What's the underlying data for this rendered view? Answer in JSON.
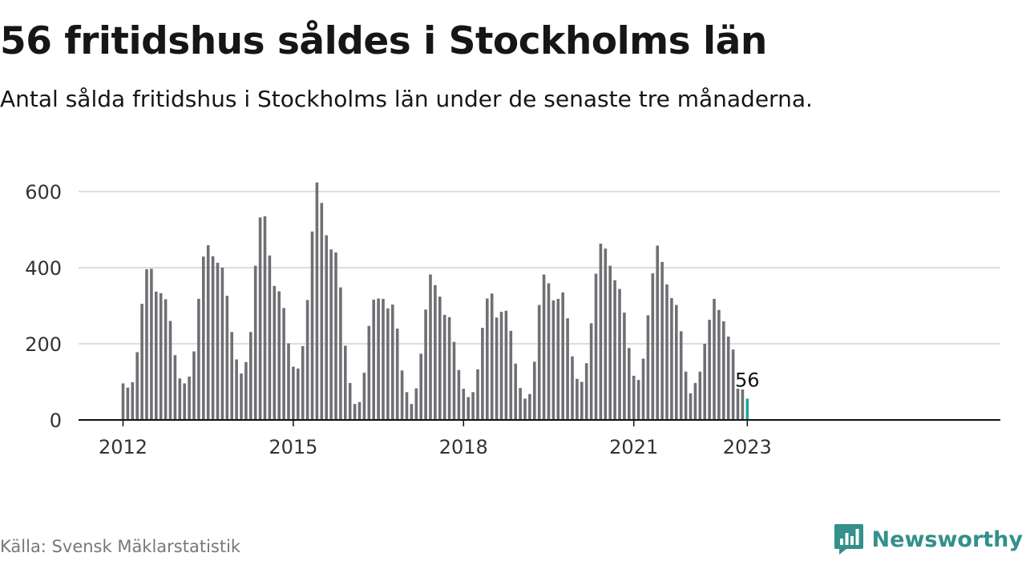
{
  "header": {
    "title": "56 fritidshus såldes i Stockholms län",
    "subtitle": "Antal sålda fritidshus i Stockholms län under de senaste tre månaderna."
  },
  "footer": {
    "source": "Källa: Svensk Mäklarstatistik",
    "brand": "Newsworthy",
    "brand_icon": "bar-chart-logo-icon"
  },
  "colors": {
    "bar": "#6f6f74",
    "highlight": "#1ea69a",
    "grid": "#dddddd",
    "axis": "#111111",
    "brand": "#33908a"
  },
  "chart_data": {
    "type": "bar",
    "x_start": "2012-01",
    "interval": "month",
    "values": [
      96,
      85,
      99,
      178,
      305,
      396,
      397,
      337,
      333,
      317,
      260,
      170,
      109,
      96,
      114,
      180,
      318,
      429,
      459,
      430,
      413,
      400,
      326,
      231,
      159,
      122,
      152,
      231,
      405,
      532,
      535,
      432,
      352,
      338,
      294,
      201,
      140,
      135,
      194,
      315,
      495,
      624,
      570,
      485,
      448,
      440,
      348,
      195,
      97,
      42,
      47,
      124,
      247,
      316,
      319,
      318,
      293,
      303,
      240,
      130,
      73,
      42,
      83,
      174,
      290,
      382,
      354,
      324,
      276,
      270,
      205,
      131,
      82,
      60,
      73,
      133,
      242,
      319,
      332,
      269,
      284,
      287,
      234,
      148,
      84,
      56,
      68,
      153,
      302,
      382,
      359,
      314,
      318,
      335,
      267,
      167,
      108,
      100,
      149,
      254,
      384,
      463,
      450,
      405,
      367,
      344,
      282,
      189,
      116,
      105,
      161,
      275,
      385,
      458,
      415,
      356,
      320,
      302,
      233,
      127,
      70,
      97,
      127,
      200,
      263,
      318,
      289,
      259,
      219,
      185,
      82,
      80,
      56
    ],
    "x_ticks": [
      "2012",
      "2015",
      "2018",
      "2021",
      "2023"
    ],
    "y_ticks": [
      0,
      200,
      400,
      600
    ],
    "ylim": [
      0,
      650
    ],
    "grid": true,
    "highlight": {
      "index": 132,
      "label": "56"
    }
  }
}
